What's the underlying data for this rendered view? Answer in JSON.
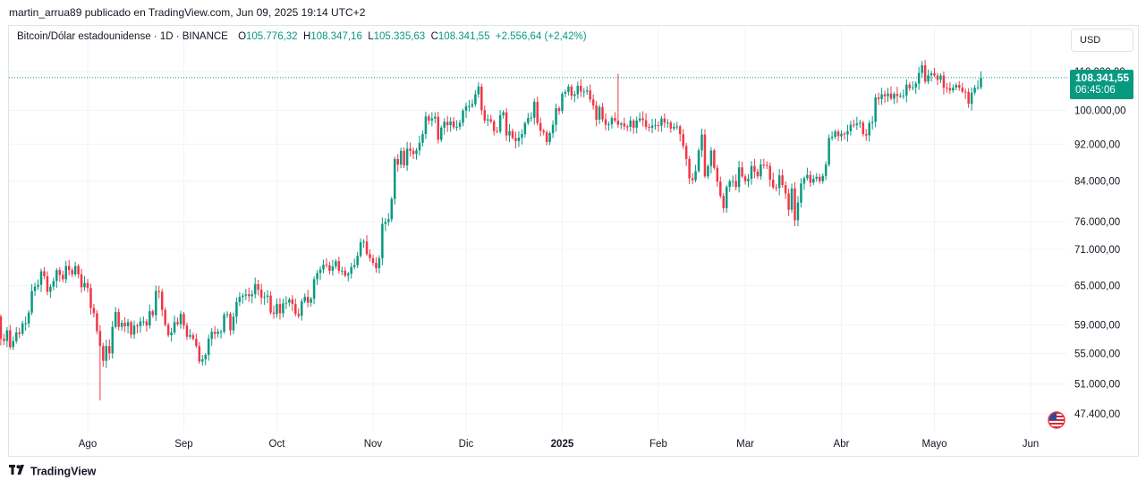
{
  "publisher_line": "martin_arrua89 publicado en TradingView.com, Jun 09, 2025 19:14 UTC+2",
  "legend": {
    "symbol": "Bitcoin/Dólar estadounidense · 1D · BINANCE",
    "open_label": "O",
    "open": "105.776,32",
    "high_label": "H",
    "high": "108.347,16",
    "low_label": "L",
    "low": "105.335,63",
    "close_label": "C",
    "close": "108.341,55",
    "change": "+2.556,64 (+2,42%)"
  },
  "currency_button": "USD",
  "price_badge": {
    "price": "108.341,55",
    "countdown": "06:45:06"
  },
  "branding": "TradingView",
  "colors": {
    "up": "#089981",
    "down": "#f23645",
    "grid": "#f0f3fa",
    "text": "#131722"
  },
  "flag_icon": "us-flag-icon",
  "chart_data": {
    "type": "candlestick",
    "scale": "log",
    "ylim": [
      45000,
      118000
    ],
    "last_price": 108341.55,
    "y_ticks": [
      {
        "value": 110000,
        "label": "110.000,00"
      },
      {
        "value": 100000,
        "label": "100.000,00"
      },
      {
        "value": 92000,
        "label": "92.000,00"
      },
      {
        "value": 84000,
        "label": "84.000,00"
      },
      {
        "value": 76000,
        "label": "76.000,00"
      },
      {
        "value": 71000,
        "label": "71.000,00"
      },
      {
        "value": 65000,
        "label": "65.000,00"
      },
      {
        "value": 59000,
        "label": "59.000,00"
      },
      {
        "value": 55000,
        "label": "55.000,00"
      },
      {
        "value": 51000,
        "label": "51.000,00"
      },
      {
        "value": 47400,
        "label": "47.400,00"
      }
    ],
    "x_ticks": [
      {
        "date": "2024-08-01",
        "label": "Ago",
        "bold": false
      },
      {
        "date": "2024-09-01",
        "label": "Sep",
        "bold": false
      },
      {
        "date": "2024-10-01",
        "label": "Oct",
        "bold": false
      },
      {
        "date": "2024-11-01",
        "label": "Nov",
        "bold": false
      },
      {
        "date": "2024-12-01",
        "label": "Dic",
        "bold": false
      },
      {
        "date": "2025-01-01",
        "label": "2025",
        "bold": true
      },
      {
        "date": "2025-02-01",
        "label": "Feb",
        "bold": false
      },
      {
        "date": "2025-03-01",
        "label": "Mar",
        "bold": false
      },
      {
        "date": "2025-04-01",
        "label": "Abr",
        "bold": false
      },
      {
        "date": "2025-05-01",
        "label": "Mayo",
        "bold": false
      },
      {
        "date": "2025-06-01",
        "label": "Jun",
        "bold": false
      }
    ],
    "first_date": "2024-07-01",
    "closes": [
      62700,
      62900,
      60200,
      57000,
      56700,
      58200,
      55850,
      56700,
      57900,
      57700,
      59200,
      59200,
      60800,
      64100,
      64800,
      65100,
      67300,
      66500,
      64000,
      64800,
      65700,
      67500,
      66700,
      66000,
      68200,
      67500,
      66800,
      68200,
      66800,
      64700,
      65400,
      64600,
      61500,
      60700,
      58100,
      56000,
      54000,
      56000,
      55000,
      58700,
      60900,
      58700,
      59300,
      58800,
      59400,
      57600,
      58900,
      58800,
      59500,
      59500,
      58900,
      61000,
      60400,
      64100,
      64000,
      61200,
      59000,
      57500,
      57900,
      59400,
      59100,
      60600,
      58900,
      57300,
      57500,
      57000,
      56000,
      53900,
      54200,
      54800,
      57000,
      58000,
      57700,
      58000,
      58000,
      60500,
      60600,
      58200,
      60200,
      62400,
      63200,
      63400,
      63600,
      63300,
      63600,
      65200,
      64300,
      63100,
      63200,
      63400,
      60800,
      60600,
      62100,
      60700,
      62200,
      62300,
      62800,
      62100,
      60600,
      60300,
      62500,
      63200,
      62300,
      62900,
      66000,
      67000,
      67600,
      68400,
      68300,
      67400,
      68100,
      69000,
      67400,
      67400,
      66600,
      66900,
      68000,
      68300,
      69900,
      72300,
      72400,
      70200,
      69500,
      68700,
      67800,
      69500,
      75600,
      76000,
      76500,
      80400,
      88700,
      87500,
      90500,
      87300,
      91000,
      90500,
      89800,
      90600,
      92300,
      94300,
      98500,
      97500,
      98000,
      98400,
      93000,
      95800,
      97200,
      96400,
      97300,
      95900,
      96000,
      97000,
      99900,
      101000,
      101000,
      101500,
      104000,
      106000,
      100000,
      97500,
      97800,
      97300,
      95000,
      94900,
      98800,
      99500,
      94000,
      95000,
      93400,
      92700,
      93500,
      94300,
      96900,
      98100,
      98200,
      102100,
      96900,
      95100,
      94700,
      92500,
      94500,
      96500,
      100500,
      99800,
      104100,
      104600,
      106000,
      103600,
      104000,
      106200,
      104700,
      104700,
      105000,
      102700,
      101200,
      97700,
      100800,
      97800,
      96500,
      96600,
      98100,
      97500,
      96500,
      96800,
      96100,
      96000,
      97500,
      95800,
      97500,
      98000,
      97600,
      96000,
      95800,
      96300,
      96400,
      96300,
      98000,
      97000,
      97000,
      95600,
      96000,
      96100,
      94300,
      91600,
      88700,
      84600,
      84200,
      86100,
      90600,
      94200,
      85000,
      87200,
      90600,
      86800,
      83900,
      81000,
      78600,
      82800,
      84000,
      84000,
      82800,
      86900,
      85000,
      84000,
      84500,
      87200,
      86000,
      85000,
      87500,
      87400,
      87200,
      84300,
      82700,
      82600,
      85200,
      83200,
      81500,
      78300,
      82500,
      76300,
      79700,
      83500,
      84600,
      85300,
      83700,
      84500,
      84900,
      84000,
      85100,
      87500,
      93400,
      93700,
      94900,
      93800,
      94400,
      94200,
      95000,
      96500,
      96400,
      96800,
      97000,
      94300,
      94000,
      96900,
      97200,
      103200,
      102800,
      104000,
      103500,
      104200,
      102900,
      104100,
      103600,
      103600,
      103700,
      106500,
      105600,
      105800,
      106800,
      109600,
      111700,
      107300,
      109000,
      109500,
      108900,
      107800,
      108900,
      105700,
      105600,
      105000,
      105700,
      106400,
      105700,
      104700,
      104600,
      101600,
      104400,
      105700,
      105800,
      108341.55
    ],
    "extremes": [
      {
        "index": 35,
        "low": 49000
      },
      {
        "index": 202,
        "high": 109400
      },
      {
        "index": 327,
        "high": 112000
      }
    ]
  }
}
